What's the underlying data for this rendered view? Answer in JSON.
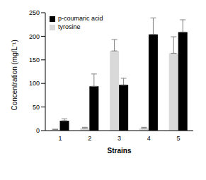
{
  "chart_data": {
    "type": "bar",
    "x_label": "Strains",
    "y_label": "Concentration (mg/L⁻¹)",
    "categories": [
      "1",
      "2",
      "3",
      "4",
      "5"
    ],
    "series": [
      {
        "name": "tyrosine",
        "color": "#d9d9d9",
        "values": [
          2,
          5,
          169,
          5,
          164
        ],
        "errors": [
          1,
          2,
          24,
          2,
          35
        ]
      },
      {
        "name": "p-coumaric acid",
        "color": "#000000",
        "values": [
          21,
          94,
          97,
          204,
          209
        ],
        "errors": [
          4,
          26,
          14,
          35,
          26
        ]
      }
    ],
    "ylim": [
      0,
      250
    ],
    "yticks": [
      0,
      50,
      100,
      150,
      200,
      250
    ],
    "grid": false,
    "legend": "upper left"
  }
}
